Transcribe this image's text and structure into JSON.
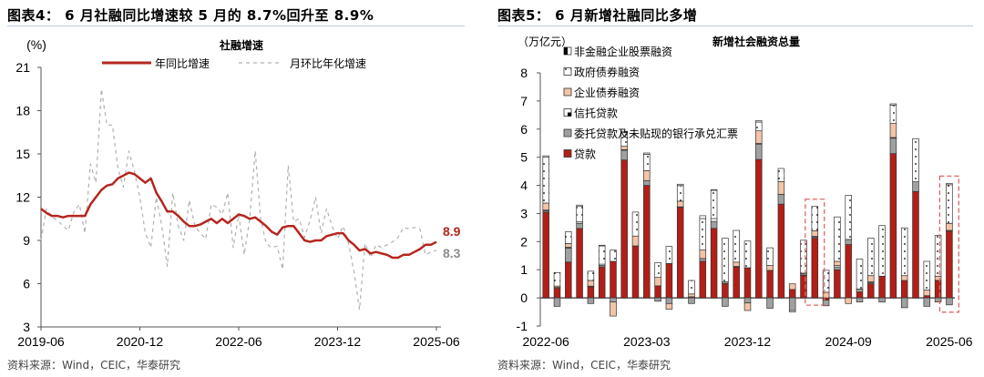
{
  "left_panel": {
    "title": "图表4：  6 月社融同比增速较 5 月的 8.7%回升至 8.9%",
    "source": "资料来源：Wind，CEIC，华泰研究"
  },
  "right_panel": {
    "title": "图表5：  6 月新增社融同比多增",
    "source": "资料来源：Wind，CEIC，华泰研究"
  },
  "chart_data": [
    {
      "type": "line",
      "title": "社融增速",
      "ylabel": "(%)",
      "ylim": [
        3,
        21
      ],
      "yticks": [
        3,
        6,
        9,
        12,
        15,
        18,
        21
      ],
      "xticks": [
        "2019-06",
        "2020-12",
        "2022-06",
        "2023-12",
        "2025-06"
      ],
      "x_start": "2019-06",
      "x_end": "2025-06",
      "grid": false,
      "legend": "top",
      "end_labels": {
        "yoy": "8.9",
        "mom": "8.3"
      },
      "series": [
        {
          "name": "年同比增速",
          "color": "#b5261e",
          "style": "solid",
          "values": [
            11.2,
            10.9,
            10.7,
            10.7,
            10.6,
            10.7,
            10.7,
            10.7,
            10.7,
            11.5,
            12.0,
            12.5,
            12.8,
            12.9,
            13.3,
            13.5,
            13.7,
            13.6,
            13.3,
            13.0,
            13.3,
            12.3,
            11.7,
            11.0,
            11.0,
            10.7,
            10.3,
            10.0,
            10.0,
            10.1,
            10.3,
            10.5,
            10.2,
            10.5,
            10.2,
            10.5,
            10.8,
            10.7,
            10.5,
            10.6,
            10.3,
            10.0,
            9.6,
            9.4,
            9.9,
            10.0,
            10.0,
            9.5,
            9.0,
            8.9,
            9.0,
            9.0,
            9.3,
            9.4,
            9.5,
            9.5,
            9.0,
            8.7,
            8.3,
            8.4,
            8.1,
            8.2,
            8.1,
            8.0,
            7.8,
            7.8,
            8.0,
            8.0,
            8.2,
            8.4,
            8.7,
            8.7,
            8.9
          ]
        },
        {
          "name": "月环比年化增速",
          "color": "#b0b0b0",
          "style": "dashed",
          "values": [
            9.0,
            11.2,
            10.6,
            10.4,
            10.0,
            9.7,
            11.0,
            11.5,
            9.5,
            14.3,
            13.0,
            19.5,
            17.0,
            17.0,
            14.0,
            12.7,
            15.2,
            13.8,
            12.0,
            9.5,
            8.5,
            12.0,
            10.0,
            7.2,
            12.3,
            10.0,
            9.0,
            11.8,
            10.0,
            9.5,
            9.1,
            11.5,
            11.3,
            10.8,
            12.3,
            8.5,
            10.8,
            8.0,
            10.5,
            15.2,
            10.5,
            8.8,
            8.5,
            8.6,
            7.0,
            14.2,
            10.3,
            10.5,
            9.2,
            10.4,
            12.0,
            9.5,
            11.2,
            10.0,
            9.1,
            10.0,
            8.8,
            6.8,
            4.2,
            8.8,
            7.8,
            8.7,
            8.5,
            8.7,
            8.9,
            9.2,
            9.9,
            9.8,
            9.9,
            9.8,
            8.0,
            8.2,
            8.3
          ]
        }
      ]
    },
    {
      "type": "bar",
      "stacked": true,
      "title": "新增社会融资总量",
      "ylabel": "（万亿元）",
      "ylim": [
        -1,
        8
      ],
      "yticks": [
        -1,
        0,
        1,
        2,
        3,
        4,
        5,
        6,
        7,
        8
      ],
      "xticks": [
        "2022-06",
        "2023-03",
        "2023-12",
        "2024-09",
        "2025-06"
      ],
      "x_start": "2022-06",
      "x_end": "2025-06",
      "highlighted": [
        "2024-06",
        "2025-06"
      ],
      "highlight_color": "#e06666",
      "legend": "top-left",
      "series": [
        {
          "name": "贷款",
          "color": "#b31e17",
          "pattern": "solid",
          "values": [
            3.05,
            0.35,
            1.27,
            2.47,
            0.4,
            1.1,
            1.3,
            4.9,
            1.85,
            4.0,
            0.43,
            1.22,
            3.22,
            0.04,
            1.3,
            2.47,
            0.5,
            1.1,
            1.07,
            4.92,
            0.98,
            3.33,
            0.3,
            0.8,
            2.12,
            -0.08,
            1.0,
            1.9,
            0.22,
            0.5,
            0.77,
            5.13,
            0.62,
            3.78,
            0.08,
            0.62,
            2.38
          ]
        },
        {
          "name": "委托贷款及未贴现的银行承兑汇票",
          "color": "#a0a0a0",
          "pattern": "solid",
          "values": [
            0.05,
            -0.3,
            0.5,
            0.18,
            -0.2,
            0.05,
            -0.15,
            0.35,
            0,
            0.17,
            -0.12,
            -0.2,
            0.02,
            -0.2,
            0.1,
            0.25,
            -0.3,
            0.02,
            -0.18,
            0.55,
            -0.37,
            0.35,
            -0.45,
            0.05,
            0.05,
            -0.2,
            0.1,
            0.18,
            -0.15,
            0.05,
            -0.15,
            0.55,
            -0.35,
            0.35,
            -0.3,
            -0.15,
            -0.25
          ]
        },
        {
          "name": "信托贷款",
          "color": "#ffffff",
          "pattern": "half-dark",
          "values": [
            0.02,
            0.02,
            0.03,
            0.05,
            0.02,
            0.05,
            0,
            0.02,
            0,
            0,
            0,
            0,
            0,
            0,
            0,
            0.1,
            0.02,
            0,
            0,
            0.02,
            0,
            0,
            -0.05,
            0.03,
            0.02,
            0,
            0.05,
            0,
            0.05,
            0.02,
            0,
            0.02,
            0,
            0,
            0,
            0,
            0.02
          ]
        },
        {
          "name": "企业债券融资",
          "color": "#f4c4a6",
          "pattern": "solid",
          "values": [
            0.25,
            0.05,
            0.13,
            0,
            0.2,
            0,
            -0.5,
            0.12,
            0.35,
            0.35,
            0.3,
            -0.2,
            0.2,
            0.1,
            0.3,
            0,
            0.05,
            0.15,
            -0.27,
            0.45,
            0.17,
            0.45,
            0.2,
            0,
            0.2,
            0.2,
            0.15,
            -0.2,
            0.05,
            0.22,
            0,
            0.5,
            0.17,
            0,
            0.2,
            0.15,
            0.25
          ]
        },
        {
          "name": "政府债券融资",
          "color": "#ffffff",
          "pattern": "dotted",
          "values": [
            1.63,
            0.48,
            0.42,
            0.55,
            0.33,
            0.65,
            0.4,
            0.48,
            0.85,
            0.58,
            0.52,
            0.61,
            0.55,
            0.48,
            1.12,
            1.0,
            1.55,
            1.13,
            0.95,
            0.31,
            0.63,
            0.47,
            0,
            1.17,
            0.86,
            0.78,
            1.58,
            1.57,
            1.06,
            1.33,
            1.8,
            0.65,
            1.7,
            1.53,
            1.02,
            1.45,
            1.37
          ]
        },
        {
          "name": "非金融企业股票融资",
          "color": "#ffffff",
          "pattern": "half-left-dark",
          "values": [
            0.05,
            0,
            0,
            0.05,
            0,
            0.02,
            0,
            0.05,
            0,
            0.05,
            0,
            0,
            0.05,
            0,
            0.1,
            0.03,
            0,
            0,
            0,
            0.05,
            0,
            0,
            0,
            0,
            0,
            0,
            0,
            0,
            0,
            0,
            0,
            0.05,
            0,
            0,
            0,
            0,
            0.05
          ]
        }
      ]
    }
  ]
}
